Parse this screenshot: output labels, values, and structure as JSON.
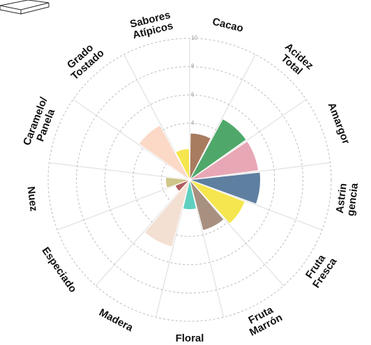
{
  "chart_data": {
    "type": "polar-bar",
    "categories": [
      [
        "Cacao"
      ],
      [
        "Acidez",
        "Total"
      ],
      [
        "Amargor"
      ],
      [
        "Astrin",
        "gencia"
      ],
      [
        "Fruta",
        "Fresca"
      ],
      [
        "Fruta",
        "Marrón"
      ],
      [
        "Floral"
      ],
      [
        "Madera"
      ],
      [
        "Especiado"
      ],
      [
        "Nuez"
      ],
      [
        "Caramelo/",
        "Panela"
      ],
      [
        "Grado",
        "Tostado"
      ],
      [
        "Sabores",
        "Atípicos"
      ]
    ],
    "values": [
      3.3,
      4.9,
      4.9,
      5.0,
      4.2,
      3.7,
      2.1,
      4.9,
      1.1,
      1.7,
      0,
      4.4,
      2.2
    ],
    "colors": [
      "#a87c5f",
      "#4fa86a",
      "#e8a7b5",
      "#5f7fa0",
      "#f5e64f",
      "#a89080",
      "#5fd0c0",
      "#f3e0d3",
      "#b05c5c",
      "#cfc68a",
      "#e8c89a",
      "#fbd9c6",
      "#f5e64f"
    ],
    "rlim": [
      0,
      10
    ],
    "rticks": [
      2,
      4,
      6,
      8,
      10
    ],
    "grid": true
  }
}
